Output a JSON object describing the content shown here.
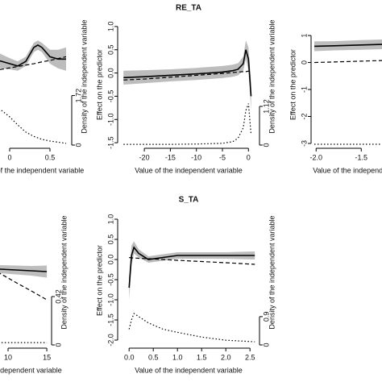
{
  "chart_data": [
    {
      "type": "line",
      "xlabel": "Value of the independent variable",
      "y2label": "Density of the independent variable",
      "x": [
        -0.2,
        -0.1,
        0,
        0.1,
        0.2,
        0.3,
        0.35,
        0.4,
        0.5,
        0.6,
        0.7
      ],
      "xlim": [
        -0.22,
        0.73
      ],
      "xticks": [
        0,
        0.5
      ],
      "ylim": [
        -1.55,
        1.05
      ],
      "y2lim": [
        0,
        4.2
      ],
      "y2ticks": [
        0,
        1.72
      ],
      "band": {
        "color": "#bdbdbd",
        "lower": [
          0.1,
          0.1,
          0.08,
          0.05,
          0.15,
          0.45,
          0.5,
          0.45,
          0.2,
          0.1,
          0.05
        ],
        "upper": [
          0.5,
          0.4,
          0.32,
          0.25,
          0.35,
          0.65,
          0.7,
          0.65,
          0.5,
          0.5,
          0.55
        ]
      },
      "series": [
        {
          "color": "#000000",
          "style": "solid",
          "values": [
            0.3,
            0.25,
            0.2,
            0.15,
            0.25,
            0.55,
            0.6,
            0.55,
            0.35,
            0.3,
            0.3
          ]
        },
        {
          "color": "#000000",
          "style": "dashed",
          "values": [
            0.05,
            0.08,
            0.11,
            0.14,
            0.17,
            0.2,
            0.22,
            0.24,
            0.27,
            0.31,
            0.35
          ]
        },
        {
          "color": "#000000",
          "style": "dotted",
          "axis": "y2",
          "values": [
            1.4,
            1.2,
            0.98,
            0.7,
            0.45,
            0.3,
            0.25,
            0.2,
            0.14,
            0.1,
            0.06
          ]
        }
      ]
    },
    {
      "type": "line",
      "title": "RE_TA",
      "xlabel": "Value of the independent variable",
      "ylabel": "Effect on the predictor",
      "y2label": "Density of the independent variable",
      "x": [
        -24,
        -20,
        -15,
        -10,
        -5,
        -3,
        -2,
        -1,
        -0.5,
        0,
        0.5
      ],
      "xlim": [
        -24.5,
        1.5
      ],
      "xticks": [
        -20,
        -15,
        -10,
        -5,
        0
      ],
      "ylim": [
        -1.55,
        1.05
      ],
      "yticks": [
        {
          "value": -1.5,
          "label": "-1.5"
        },
        {
          "value": -1,
          "label": "-1.0"
        },
        -0.5,
        {
          "value": 0,
          "label": "0.0"
        },
        0.5,
        {
          "value": 1,
          "label": "1.0"
        }
      ],
      "y2lim": [
        0,
        3.5
      ],
      "y2ticks": [
        0,
        1.12
      ],
      "band": {
        "color": "#bdbdbd",
        "lower": [
          -0.25,
          -0.22,
          -0.18,
          -0.15,
          -0.11,
          -0.08,
          -0.05,
          0.05,
          0.3,
          0.05,
          -0.8
        ],
        "upper": [
          0.05,
          0.06,
          0.08,
          0.11,
          0.15,
          0.18,
          0.21,
          0.35,
          0.7,
          0.55,
          -0.2
        ]
      },
      "series": [
        {
          "color": "#000000",
          "style": "solid",
          "values": [
            -0.1,
            -0.08,
            -0.05,
            -0.02,
            0.02,
            0.05,
            0.08,
            0.2,
            0.5,
            0.3,
            -0.5
          ]
        },
        {
          "color": "#000000",
          "style": "dashed",
          "values": [
            -0.15,
            -0.13,
            -0.09,
            -0.05,
            -0.01,
            0.01,
            0.02,
            0.03,
            0.03,
            0.04,
            0.04
          ]
        },
        {
          "color": "#000000",
          "style": "dotted",
          "axis": "y2",
          "values": [
            0.02,
            0.02,
            0.02,
            0.03,
            0.05,
            0.1,
            0.2,
            0.5,
            1.0,
            1.2,
            0.3
          ]
        }
      ]
    },
    {
      "type": "line",
      "xlabel": "Value of the independent variable",
      "ylabel": "Effect on the predictor",
      "x": [
        -2.02,
        -1.8,
        -1.5,
        -1.2,
        -0.9
      ],
      "xlim": [
        -2.02,
        -0.86
      ],
      "xticks": [
        {
          "value": -2,
          "label": "-2.0"
        },
        -1.5
      ],
      "ylim": [
        -3.06,
        1.42
      ],
      "yticks": [
        -3,
        -2,
        -1,
        0,
        1
      ],
      "y2lim": [
        0,
        3
      ],
      "band": {
        "color": "#bdbdbd",
        "lower": [
          0.42,
          0.45,
          0.47,
          0.5,
          0.5
        ],
        "upper": [
          0.78,
          0.79,
          0.83,
          0.86,
          0.9
        ]
      },
      "series": [
        {
          "color": "#000000",
          "style": "solid",
          "values": [
            0.6,
            0.62,
            0.65,
            0.68,
            0.7
          ]
        },
        {
          "color": "#000000",
          "style": "dashed",
          "values": [
            0,
            0.02,
            0.05,
            0.08,
            0.1
          ]
        },
        {
          "color": "#000000",
          "style": "dotted",
          "axis": "y2",
          "values": [
            0.02,
            0.02,
            0.02,
            0.02,
            0.02
          ]
        }
      ]
    },
    {
      "type": "line",
      "xlabel": "Value of the independent variable",
      "y2label": "Density of the independent variable",
      "x": [
        5,
        7,
        9,
        11,
        13,
        15
      ],
      "xlim": [
        4.8,
        15.2
      ],
      "xticks": [
        10,
        15
      ],
      "ylim": [
        -2.12,
        1.08
      ],
      "y2lim": [
        0,
        1.12
      ],
      "y2ticks": [
        0,
        0.42
      ],
      "band": {
        "color": "#bdbdbd",
        "lower": [
          -0.3,
          -0.32,
          -0.34,
          -0.37,
          -0.4,
          -0.45
        ],
        "upper": [
          -0.1,
          -0.12,
          -0.14,
          -0.15,
          -0.16,
          -0.15
        ]
      },
      "series": [
        {
          "color": "#000000",
          "style": "solid",
          "values": [
            -0.2,
            -0.22,
            -0.24,
            -0.26,
            -0.28,
            -0.3
          ]
        },
        {
          "color": "#000000",
          "style": "dashed",
          "values": [
            0.08,
            -0.14,
            -0.35,
            -0.57,
            -0.78,
            -1.0
          ]
        },
        {
          "color": "#000000",
          "style": "dotted",
          "axis": "y2",
          "values": [
            0.03,
            0.03,
            0.02,
            0.02,
            0.02,
            0.02
          ]
        }
      ]
    },
    {
      "type": "line",
      "title": "S_TA",
      "xlabel": "Value of the independent variable",
      "ylabel": "Effect on the predictor",
      "y2label": "Density of the independent variable",
      "x": [
        0,
        0.05,
        0.1,
        0.2,
        0.4,
        0.7,
        1.0,
        1.5,
        2.0,
        2.6
      ],
      "xlim": [
        -0.17,
        2.63
      ],
      "xticks": [
        {
          "value": 0,
          "label": "0.0"
        },
        0.5,
        {
          "value": 1,
          "label": "1.0"
        },
        1.5,
        {
          "value": 2,
          "label": "2.0"
        },
        2.5
      ],
      "ylim": [
        -2.12,
        1.08
      ],
      "yticks": [
        {
          "value": -2,
          "label": "-2.0"
        },
        -1.5,
        {
          "value": -1,
          "label": "-1.0"
        },
        -0.5,
        {
          "value": 0,
          "label": "0.0"
        },
        0.5,
        {
          "value": 1,
          "label": "1.0"
        }
      ],
      "y2lim": [
        0,
        4.1
      ],
      "y2ticks": [
        0,
        0.9
      ],
      "band": {
        "color": "#bdbdbd",
        "lower": [
          -1.0,
          -0.15,
          0.15,
          0.05,
          -0.08,
          -0.03,
          0.02,
          0.02,
          0.02,
          0.0
        ],
        "upper": [
          -0.4,
          0.35,
          0.45,
          0.25,
          0.08,
          0.13,
          0.18,
          0.18,
          0.18,
          0.2
        ]
      },
      "series": [
        {
          "color": "#000000",
          "style": "solid",
          "values": [
            -0.7,
            0.1,
            0.3,
            0.15,
            0.0,
            0.05,
            0.1,
            0.1,
            0.1,
            0.1
          ]
        },
        {
          "color": "#000000",
          "style": "dashed",
          "values": [
            0.05,
            0.04,
            0.04,
            0.03,
            0.02,
            0.0,
            -0.02,
            -0.05,
            -0.08,
            -0.12
          ]
        },
        {
          "color": "#000000",
          "style": "dotted",
          "axis": "y2",
          "values": [
            0.5,
            0.8,
            1.0,
            0.9,
            0.7,
            0.5,
            0.4,
            0.25,
            0.15,
            0.1
          ]
        }
      ]
    }
  ]
}
